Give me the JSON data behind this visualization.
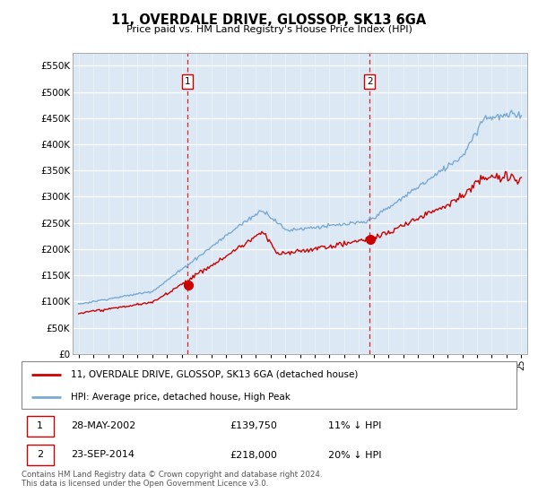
{
  "title": "11, OVERDALE DRIVE, GLOSSOP, SK13 6GA",
  "subtitle": "Price paid vs. HM Land Registry's House Price Index (HPI)",
  "hpi_color": "#7aaad4",
  "price_color": "#cc0000",
  "marker1_x": 2002.38,
  "marker2_x": 2014.72,
  "ylim_min": 0,
  "ylim_max": 575000,
  "yticks": [
    0,
    50000,
    100000,
    150000,
    200000,
    250000,
    300000,
    350000,
    400000,
    450000,
    500000,
    550000
  ],
  "xlim_min": 1994.6,
  "xlim_max": 2025.4,
  "legend_line1": "11, OVERDALE DRIVE, GLOSSOP, SK13 6GA (detached house)",
  "legend_line2": "HPI: Average price, detached house, High Peak",
  "table_row1": [
    "1",
    "28-MAY-2002",
    "£139,750",
    "11% ↓ HPI"
  ],
  "table_row2": [
    "2",
    "23-SEP-2014",
    "£218,000",
    "20% ↓ HPI"
  ],
  "footnote": "Contains HM Land Registry data © Crown copyright and database right 2024.\nThis data is licensed under the Open Government Licence v3.0.",
  "plot_bg": "#dce9f5",
  "grid_color": "#b0c4d8"
}
